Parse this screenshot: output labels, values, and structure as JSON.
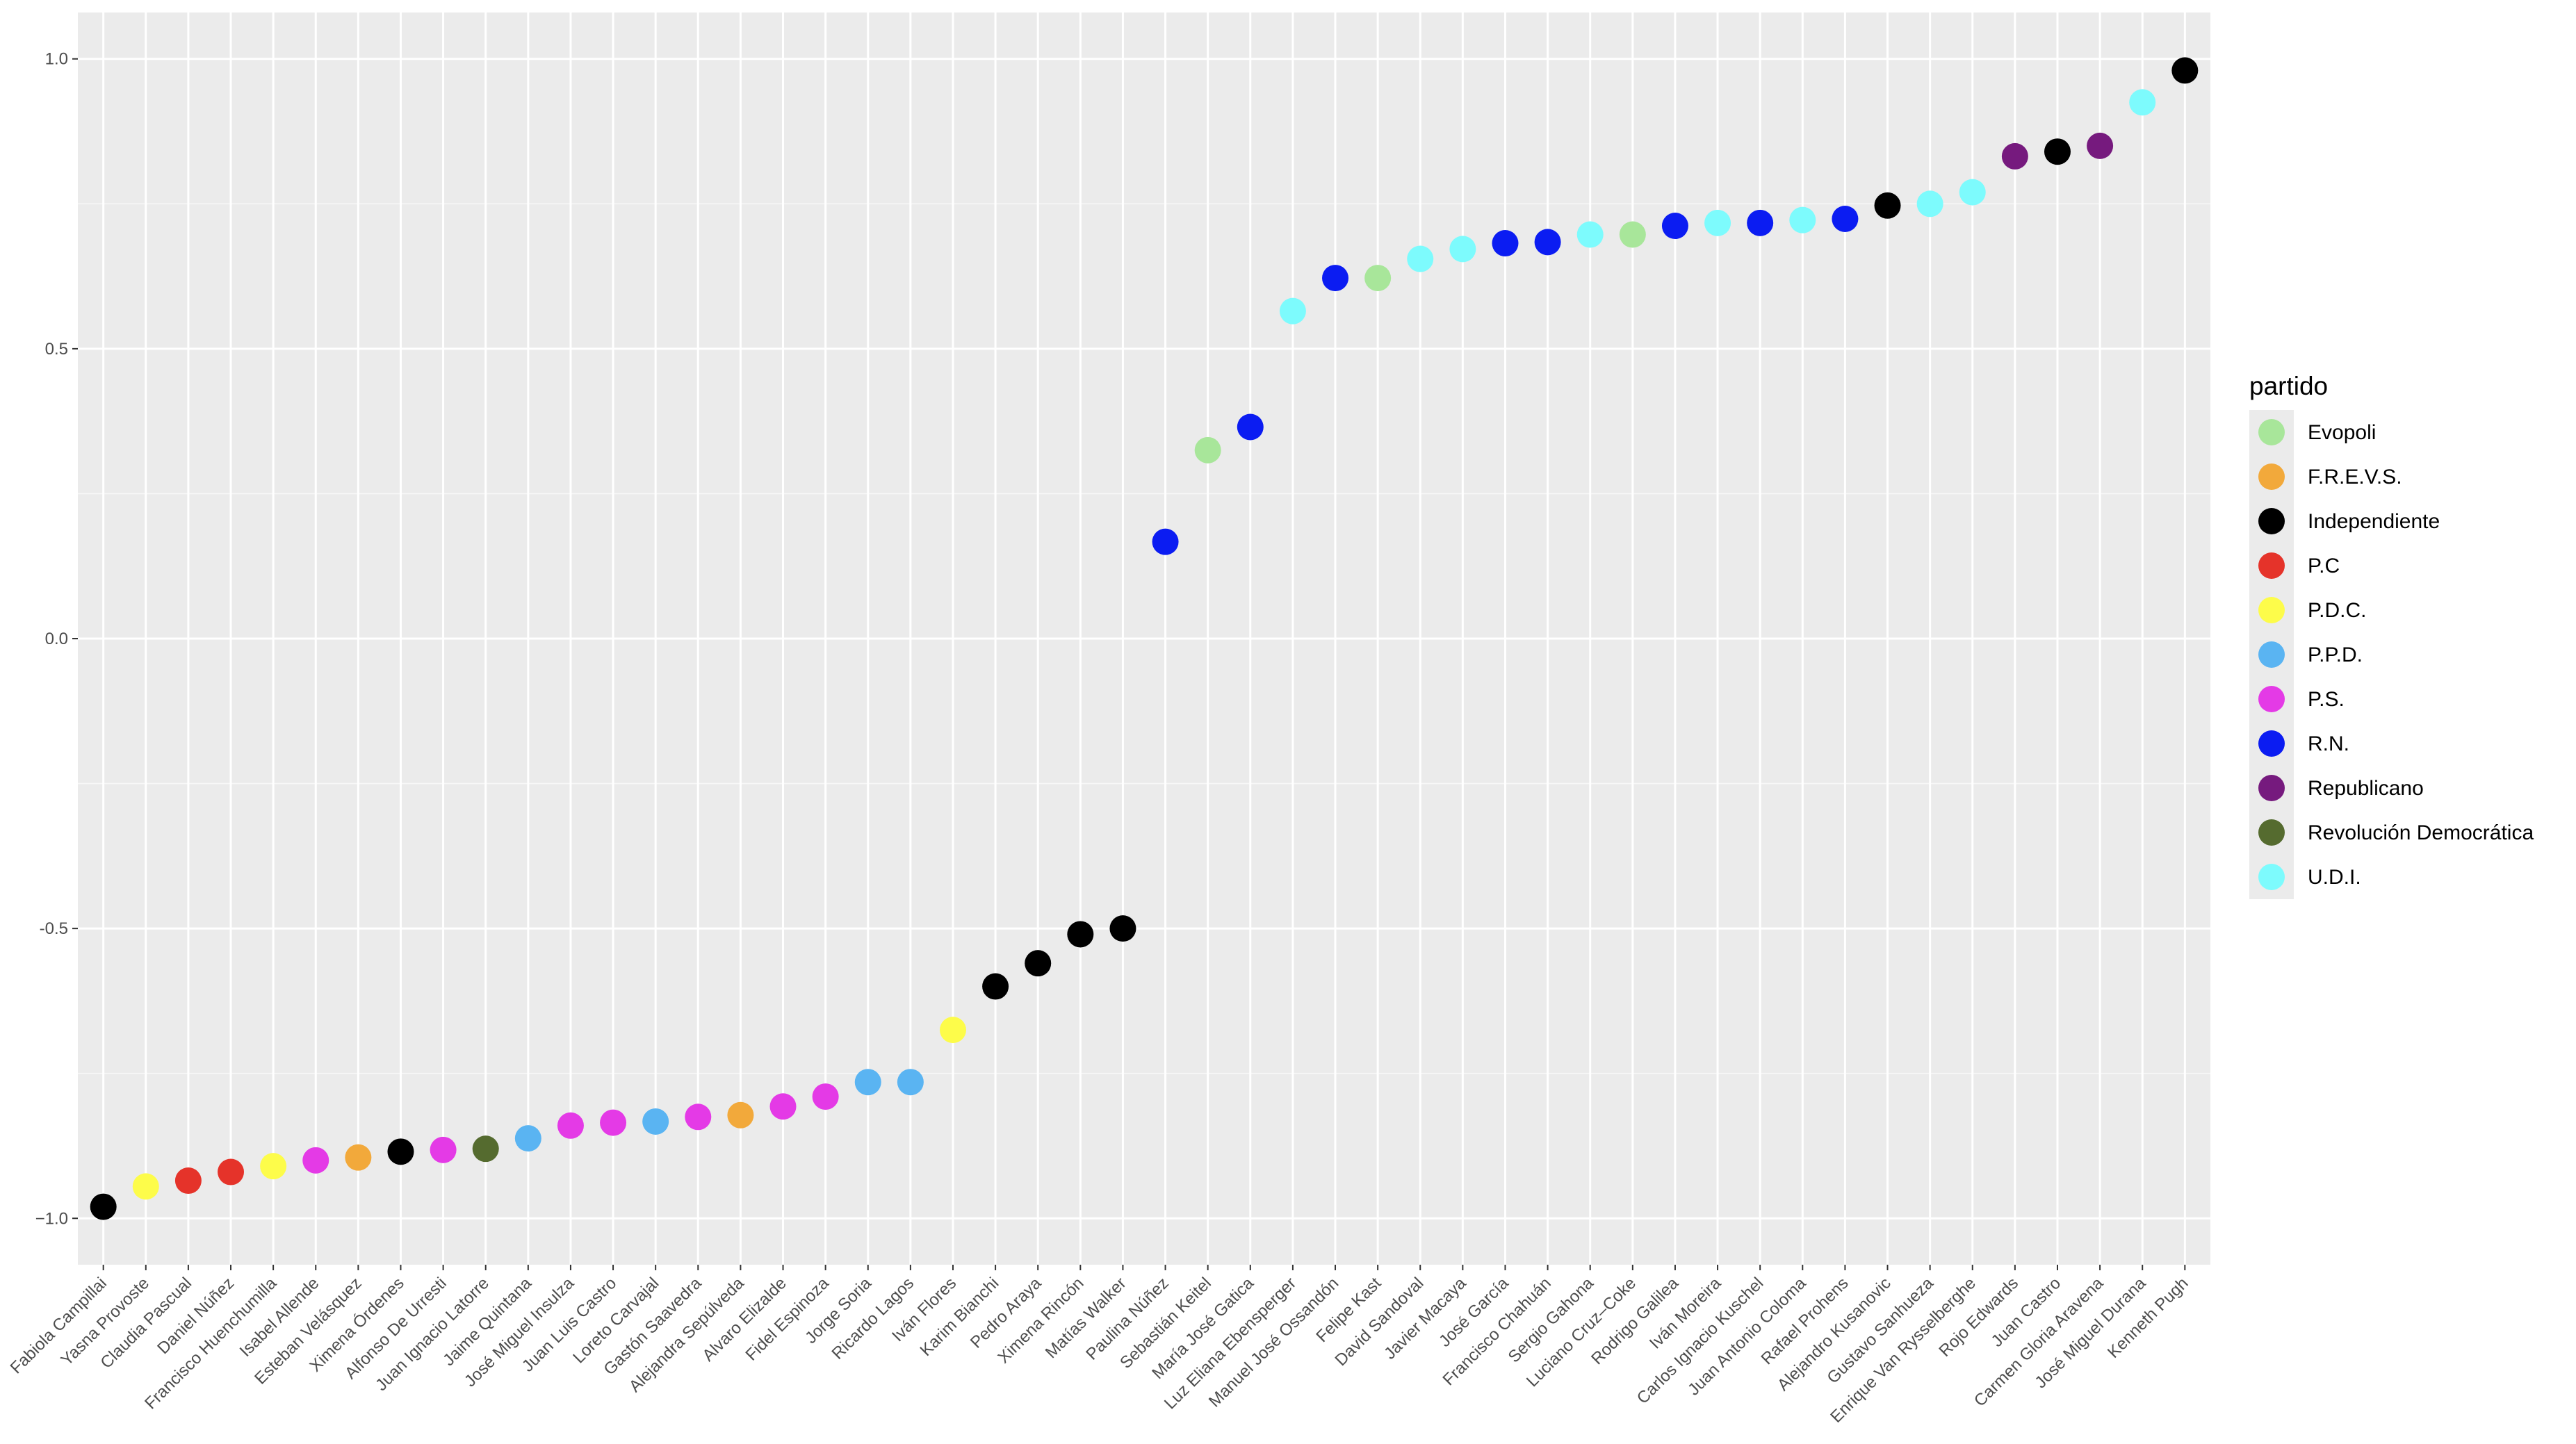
{
  "chart_data": {
    "type": "scatter",
    "title": "",
    "xlabel": "",
    "ylabel": "",
    "ylim": [
      -1.08,
      1.08
    ],
    "y_ticks": [
      {
        "value": 1.0,
        "label": "1.0"
      },
      {
        "value": 0.5,
        "label": "0.5"
      },
      {
        "value": 0.0,
        "label": "0.0"
      },
      {
        "value": -0.5,
        "label": "-0.5"
      },
      {
        "value": -1.0,
        "label": "−1.0"
      }
    ],
    "grid": true,
    "legend": {
      "title": "partido",
      "placement": "right",
      "entries": [
        {
          "name": "Evopoli",
          "color": "#a8e69a"
        },
        {
          "name": "F.R.E.V.S.",
          "color": "#f2a93b"
        },
        {
          "name": "Independiente",
          "color": "#000000"
        },
        {
          "name": "P.C",
          "color": "#e5332a"
        },
        {
          "name": "P.D.C.",
          "color": "#fdfc4a"
        },
        {
          "name": "P.P.D.",
          "color": "#5ab4f2"
        },
        {
          "name": "P.S.",
          "color": "#e43ae6"
        },
        {
          "name": "R.N.",
          "color": "#0b1cf2"
        },
        {
          "name": "Republicano",
          "color": "#761a7e"
        },
        {
          "name": "Revolución Democrática",
          "color": "#556b2f"
        },
        {
          "name": "U.D.I.",
          "color": "#7dfbfd"
        }
      ]
    },
    "points": [
      {
        "name": "Fabiola Campillai",
        "partido": "Independiente",
        "value": -0.98
      },
      {
        "name": "Yasna Provoste",
        "partido": "P.D.C.",
        "value": -0.945
      },
      {
        "name": "Claudia Pascual",
        "partido": "P.C",
        "value": -0.935
      },
      {
        "name": "Daniel Núñez",
        "partido": "P.C",
        "value": -0.92
      },
      {
        "name": "Francisco Huenchumilla",
        "partido": "P.D.C.",
        "value": -0.91
      },
      {
        "name": "Isabel Allende",
        "partido": "P.S.",
        "value": -0.9
      },
      {
        "name": "Esteban Velásquez",
        "partido": "F.R.E.V.S.",
        "value": -0.895
      },
      {
        "name": "Ximena Órdenes",
        "partido": "Independiente",
        "value": -0.885
      },
      {
        "name": "Alfonso De Urresti",
        "partido": "P.S.",
        "value": -0.882
      },
      {
        "name": "Juan Ignacio Latorre",
        "partido": "Revolución Democrática",
        "value": -0.88
      },
      {
        "name": "Jaime Quintana",
        "partido": "P.P.D.",
        "value": -0.862
      },
      {
        "name": "José Miguel Insulza",
        "partido": "P.S.",
        "value": -0.84
      },
      {
        "name": "Juan Luis Castro",
        "partido": "P.S.",
        "value": -0.835
      },
      {
        "name": "Loreto Carvajal",
        "partido": "P.P.D.",
        "value": -0.833
      },
      {
        "name": "Gastón Saavedra",
        "partido": "P.S.",
        "value": -0.825
      },
      {
        "name": "Alejandra Sepúlveda",
        "partido": "F.R.E.V.S.",
        "value": -0.822
      },
      {
        "name": "Alvaro Elizalde",
        "partido": "P.S.",
        "value": -0.807
      },
      {
        "name": "Fidel Espinoza",
        "partido": "P.S.",
        "value": -0.79
      },
      {
        "name": "Jorge Soria",
        "partido": "P.P.D.",
        "value": -0.765
      },
      {
        "name": "Ricardo Lagos",
        "partido": "P.P.D.",
        "value": -0.765
      },
      {
        "name": "Iván Flores",
        "partido": "P.D.C.",
        "value": -0.675
      },
      {
        "name": "Karim Bianchi",
        "partido": "Independiente",
        "value": -0.6
      },
      {
        "name": "Pedro Araya",
        "partido": "Independiente",
        "value": -0.56
      },
      {
        "name": "Ximena Rincón",
        "partido": "Independiente",
        "value": -0.51
      },
      {
        "name": "Matías Walker",
        "partido": "Independiente",
        "value": -0.5
      },
      {
        "name": "Paulina Núñez",
        "partido": "R.N.",
        "value": 0.167
      },
      {
        "name": "Sebastián Keitel",
        "partido": "Evopoli",
        "value": 0.325
      },
      {
        "name": "María José Gatica",
        "partido": "R.N.",
        "value": 0.365
      },
      {
        "name": "Luz Eliana Ebensperger",
        "partido": "U.D.I.",
        "value": 0.565
      },
      {
        "name": "Manuel José Ossandón",
        "partido": "R.N.",
        "value": 0.622
      },
      {
        "name": "Felipe  Kast",
        "partido": "Evopoli",
        "value": 0.622
      },
      {
        "name": "David Sandoval",
        "partido": "U.D.I.",
        "value": 0.655
      },
      {
        "name": "Javier Macaya",
        "partido": "U.D.I.",
        "value": 0.672
      },
      {
        "name": "José García",
        "partido": "R.N.",
        "value": 0.682
      },
      {
        "name": "Francisco Chahuán",
        "partido": "R.N.",
        "value": 0.684
      },
      {
        "name": "Sergio Gahona",
        "partido": "U.D.I.",
        "value": 0.697
      },
      {
        "name": "Luciano Cruz–Coke",
        "partido": "Evopoli",
        "value": 0.697
      },
      {
        "name": "Rodrigo Galilea",
        "partido": "R.N.",
        "value": 0.712
      },
      {
        "name": "Iván Moreira",
        "partido": "U.D.I.",
        "value": 0.717
      },
      {
        "name": "Carlos Ignacio Kuschel",
        "partido": "R.N.",
        "value": 0.717
      },
      {
        "name": "Juan Antonio Coloma",
        "partido": "U.D.I.",
        "value": 0.722
      },
      {
        "name": "Rafael  Prohens",
        "partido": "R.N.",
        "value": 0.724
      },
      {
        "name": "Alejandro Kusanovic",
        "partido": "Independiente",
        "value": 0.747
      },
      {
        "name": "Gustavo Sanhueza",
        "partido": "U.D.I.",
        "value": 0.75
      },
      {
        "name": "Enrique Van Rysselberghe",
        "partido": "U.D.I.",
        "value": 0.77
      },
      {
        "name": "Rojo Edwards",
        "partido": "Republicano",
        "value": 0.832
      },
      {
        "name": "Juan Castro",
        "partido": "Independiente",
        "value": 0.84
      },
      {
        "name": "Carmen Gloria Aravena",
        "partido": "Republicano",
        "value": 0.85
      },
      {
        "name": "José Miguel  Durana",
        "partido": "U.D.I.",
        "value": 0.925
      },
      {
        "name": "Kenneth Pugh",
        "partido": "Independiente",
        "value": 0.98
      }
    ]
  }
}
